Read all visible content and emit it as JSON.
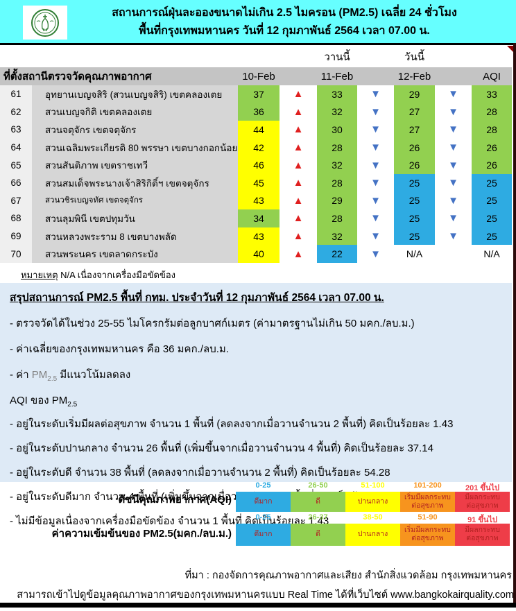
{
  "header": {
    "logo_name": "bma-seal-logo",
    "title_line1": "สถานการณ์ฝุ่นละอองขนาดไม่เกิน 2.5 ไมครอน (PM2.5) เฉลี่ย 24 ชั่วโมง",
    "title_line2": "พื้นที่กรุงเทพมหานคร วันที่ 12 กุมภาพันธ์ 2564 เวลา 07.00 น."
  },
  "table": {
    "yesterday_label": "วานนี้",
    "today_label": "วันนี้",
    "station_header": "ที่ตั้งสถานีตรวจวัดคุณภาพอากาศ",
    "col_headers": [
      "10-Feb",
      "11-Feb",
      "12-Feb",
      "AQI"
    ],
    "rows": [
      {
        "id": "61",
        "name": "อุทยานเบญจสิริ (สวนเบญจสิริ) เขตคลองเตย",
        "values": [
          "37",
          "33",
          "29",
          "33"
        ],
        "levels": [
          "green",
          "green",
          "green",
          "green"
        ],
        "arrows": [
          "up",
          "down",
          "down"
        ],
        "small_name": false
      },
      {
        "id": "62",
        "name": "สวนเบญจกิติ  เขตคลองเตย",
        "values": [
          "36",
          "32",
          "27",
          "28"
        ],
        "levels": [
          "green",
          "green",
          "green",
          "green"
        ],
        "arrows": [
          "up",
          "down",
          "down"
        ],
        "small_name": false
      },
      {
        "id": "63",
        "name": "สวนจตุจักร เขตจตุจักร",
        "values": [
          "44",
          "30",
          "27",
          "28"
        ],
        "levels": [
          "yellow",
          "green",
          "green",
          "green"
        ],
        "arrows": [
          "up",
          "down",
          "down"
        ],
        "small_name": false
      },
      {
        "id": "64",
        "name": "สวนเฉลิมพระเกียรติ 80 พรรษา  เขตบางกอกน้อย",
        "values": [
          "42",
          "28",
          "26",
          "26"
        ],
        "levels": [
          "yellow",
          "green",
          "green",
          "green"
        ],
        "arrows": [
          "up",
          "down",
          "down"
        ],
        "small_name": false
      },
      {
        "id": "65",
        "name": "สวนสันติภาพ เขตราชเทวี",
        "values": [
          "46",
          "32",
          "26",
          "26"
        ],
        "levels": [
          "yellow",
          "green",
          "green",
          "green"
        ],
        "arrows": [
          "up",
          "down",
          "down"
        ],
        "small_name": false
      },
      {
        "id": "66",
        "name": "สวนสมเด็จพระนางเจ้าสิริกิติ์ฯ เขตจตุจักร",
        "values": [
          "45",
          "28",
          "25",
          "25"
        ],
        "levels": [
          "yellow",
          "green",
          "blue",
          "blue"
        ],
        "arrows": [
          "up",
          "down",
          "down"
        ],
        "small_name": false
      },
      {
        "id": "67",
        "name": "สวนวชิรเบญจทัศ เขตจตุจักร",
        "values": [
          "43",
          "29",
          "25",
          "25"
        ],
        "levels": [
          "yellow",
          "green",
          "blue",
          "blue"
        ],
        "arrows": [
          "up",
          "down",
          "down"
        ],
        "small_name": true
      },
      {
        "id": "68",
        "name": "สวนลุมพินี เขตปทุมวัน",
        "values": [
          "34",
          "28",
          "25",
          "25"
        ],
        "levels": [
          "green",
          "green",
          "blue",
          "blue"
        ],
        "arrows": [
          "up",
          "down",
          "down"
        ],
        "small_name": false
      },
      {
        "id": "69",
        "name": "สวนหลวงพระราม 8 เขตบางพลัด",
        "values": [
          "43",
          "32",
          "25",
          "25"
        ],
        "levels": [
          "yellow",
          "green",
          "blue",
          "blue"
        ],
        "arrows": [
          "up",
          "down",
          "down"
        ],
        "small_name": false
      },
      {
        "id": "70",
        "name": "สวนพระนคร เขตลาดกระบัง",
        "values": [
          "40",
          "22",
          "N/A",
          "N/A"
        ],
        "levels": [
          "yellow",
          "blue",
          "none",
          "none"
        ],
        "arrows": [
          "up",
          "down",
          ""
        ],
        "small_name": false
      }
    ],
    "note_label": "หมายเหตุ",
    "note_text": " N/A เนื่องจากเครื่องมือขัดข้อง"
  },
  "summary": {
    "heading": "สรุปสถานการณ์ PM2.5 พื้นที่ กทม. ประจำวันที่ 12 กุมภาพันธ์ 2564 เวลา 07.00 น.",
    "bullets": [
      "- ตรวจวัดได้ในช่วง 25-55 ไมโครกรัมต่อลูกบาศก์เมตร (ค่ามาตรฐานไม่เกิน 50 มคก./ลบ.ม.)",
      "- ค่าเฉลี่ยของกรุงเทพมหานคร คือ 36 มคก./ลบ.ม."
    ],
    "pm_bullet": {
      "pre": "- ค่า ",
      "pm": "PM",
      "sub": "2.5",
      "post": "  มีแนวโน้มลดลง"
    },
    "aqi_heading": {
      "pre": "AQI ของ PM",
      "sub": "2.5"
    },
    "aqi_bullets": [
      "- อยู่ในระดับเริ่มมีผลต่อสุขภาพ จำนวน 1 พื้นที่ (ลดลงจากเมื่อวานจำนวน 2 พื้นที่) คิดเป็นร้อยละ 1.43",
      "- อยู่ในระดับปานกลาง จำนวน 26 พื้นที่ (เพิ่มขึ้นจากเมื่อวานจำนวน 4 พื้นที่) คิดเป็นร้อยละ 37.14",
      "- อยู่ในระดับดี จำนวน 38 พื้นที่ (ลดลงจากเมื่อวานจำนวน 2 พื้นที่) คิดเป็นร้อยละ 54.28",
      "- อยู่ในระดับดีมาก จำนวน 4 พื้นที่ (เพิ่มขึ้นจากเมื่อวานจำนวน 1 พื้นที่) คิดเป็นร้อยละ 5.71",
      "- ไม่มีข้อมูลเนื่องจากเครื่องมือขัดข้อง จำนวน 1 พื้นที่ คิดเป็นร้อยละ 1.43"
    ]
  },
  "legend": {
    "labels": [
      "ดีมาก",
      "ดี",
      "ปานกลาง",
      "เริ่มมีผลกระทบ\nต่อสุขภาพ",
      "มีผลกระทบ\nต่อสุขภาพ"
    ],
    "colors": [
      "#2EABE2",
      "#92D050",
      "#FFFF00",
      "#F7941E",
      "#EE3D48"
    ],
    "scales": [
      {
        "title": "ดัชนีคุณภาพอากาศ(AQI)",
        "ranges": [
          "0-25",
          "26-50",
          "51-100",
          "101-200",
          "201 ขึ้นไป"
        ]
      },
      {
        "title": "ค่าความเข้มข้นของ PM2.5(มคก./ลบ.ม.)",
        "ranges": [
          "0-25",
          "26-37",
          "38-50",
          "51-90",
          "91 ขึ้นไป"
        ]
      }
    ]
  },
  "footer": {
    "source": "ที่มา : กองจัดการคุณภาพอากาศและเสียง สำนักสิ่งแวดล้อม กรุงเทพมหานคร",
    "website_line": "สามารถเข้าไปดูข้อมูลคุณภาพอากาศของกรุงเทพมหานครแบบ Real Time ได้ที่เว็บไซต์ www.bangkokairquality.com"
  },
  "icons": {
    "up": "▲",
    "down": "▼"
  },
  "colors": {
    "header_cyan": "#66FFFF",
    "summary_blue": "#DEEAF6",
    "good_green": "#92D050",
    "moderate_yellow": "#FFFF00",
    "verygood_blue": "#2EABE2",
    "warn_orange": "#F7941E",
    "unhealthy_red": "#EE3D48",
    "arrow_up_red": "#E02020",
    "arrow_down_blue": "#4472C4"
  }
}
